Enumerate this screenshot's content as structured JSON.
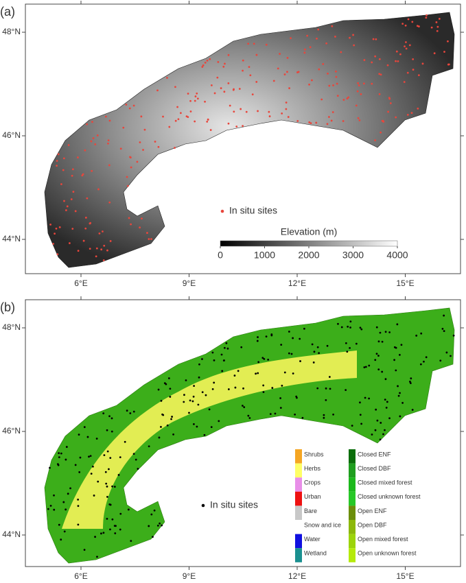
{
  "panels": [
    {
      "label": "(a)",
      "xticks": [
        {
          "value": 6,
          "label": "6°E"
        },
        {
          "value": 9,
          "label": "9°E"
        },
        {
          "value": 12,
          "label": "12°E"
        },
        {
          "value": 15,
          "label": "15°E"
        }
      ],
      "yticks": [
        {
          "value": 48,
          "label": "48°N"
        },
        {
          "value": 46,
          "label": "46°N"
        },
        {
          "value": 44,
          "label": "44°N"
        }
      ],
      "sites_legend": "In situ sites",
      "sites_color": "#e8463c",
      "colorbar": {
        "title": "Elevation (m)",
        "ticks": [
          0,
          1000,
          2000,
          3000,
          4000
        ]
      }
    },
    {
      "label": "(b)",
      "xticks": [
        {
          "value": 6,
          "label": "6°E"
        },
        {
          "value": 9,
          "label": "9°E"
        },
        {
          "value": 12,
          "label": "12°E"
        },
        {
          "value": 15,
          "label": "15°E"
        }
      ],
      "yticks": [
        {
          "value": 48,
          "label": "48°N"
        },
        {
          "value": 46,
          "label": "46°N"
        },
        {
          "value": 44,
          "label": "44°N"
        }
      ],
      "sites_legend": "In situ sites",
      "sites_color": "#000000",
      "land_cover_left": [
        {
          "name": "Shrubs",
          "color": "#f5a623"
        },
        {
          "name": "Herbs",
          "color": "#ffff66"
        },
        {
          "name": "Crops",
          "color": "#e88ee8"
        },
        {
          "name": "Urban",
          "color": "#ee1111"
        },
        {
          "name": "Bare",
          "color": "#c8c8c8"
        },
        {
          "name": "Snow and ice",
          "color": "#ffffff"
        },
        {
          "name": "Water",
          "color": "#1010e0"
        },
        {
          "name": "Wetland",
          "color": "#1a9090"
        }
      ],
      "land_cover_right": [
        {
          "name": "Closed ENF",
          "color": "#0b6e0b"
        },
        {
          "name": "Closed DBF",
          "color": "#1f9e1f"
        },
        {
          "name": "Closed mixed forest",
          "color": "#1bb81b"
        },
        {
          "name": "Closed unknown forest",
          "color": "#27c827"
        },
        {
          "name": "Open ENF",
          "color": "#6b8e0b"
        },
        {
          "name": "Open DBF",
          "color": "#8cb80b"
        },
        {
          "name": "Open mixed forest",
          "color": "#9cd40b"
        },
        {
          "name": "Open unknown forest",
          "color": "#b5ea0b"
        }
      ]
    }
  ]
}
